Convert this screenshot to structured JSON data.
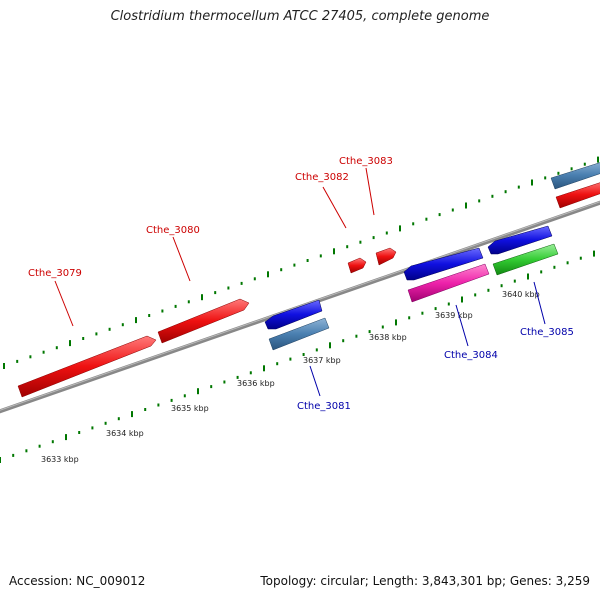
{
  "title": "Clostridium thermocellum ATCC 27405, complete genome",
  "footer": {
    "accession": "Accession: NC_009012",
    "summary": "Topology: circular; Length: 3,843,301 bp; Genes: 3,259"
  },
  "colors": {
    "forward_label": "#cc0000",
    "reverse_label": "#0000aa",
    "backbone": "#888888",
    "tick": "#007700"
  },
  "scale_labels": [
    "3633 kbp",
    "3634 kbp",
    "3635 kbp",
    "3636 kbp",
    "3637 kbp",
    "3638 kbp",
    "3639 kbp",
    "3640 kbp"
  ],
  "genes": [
    {
      "label": "Cthe_3079",
      "strand": "forward",
      "color": "#ee1111"
    },
    {
      "label": "Cthe_3080",
      "strand": "forward",
      "color": "#ee1111"
    },
    {
      "label": "Cthe_3081",
      "strand": "reverse",
      "color": "#4a7fb0"
    },
    {
      "label": "Cthe_3082",
      "strand": "forward",
      "color": "#ee1111"
    },
    {
      "label": "Cthe_3083",
      "strand": "forward",
      "color": "#ee1111"
    },
    {
      "label": "Cthe_3084",
      "strand": "reverse",
      "color": "#ee22aa"
    },
    {
      "label": "Cthe_3085",
      "strand": "reverse",
      "color": "#33cc33"
    }
  ]
}
